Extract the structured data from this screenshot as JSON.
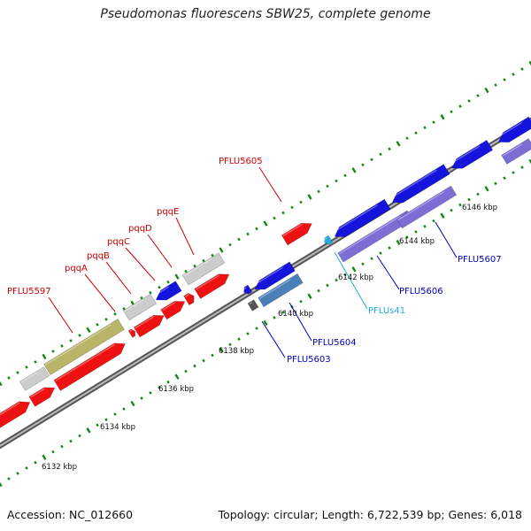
{
  "title": "Pseudomonas fluorescens SBW25, complete genome",
  "footer": {
    "accession": "Accession: NC_012660",
    "summary": "Topology: circular; Length: 6,722,539 bp; Genes: 6,018"
  },
  "colors": {
    "forward_gene": "#ee1111",
    "reverse_gene": "#1414dd",
    "pseudo": "#cccccc",
    "olive": "#b8b468",
    "purple": "#7b6fd6",
    "steel": "#4a7fb8",
    "label_red": "#cc0000",
    "label_blue": "#0000bb",
    "label_cyan": "#22aadd",
    "tick": "#118811"
  },
  "ticks": [
    {
      "label": "6132 kbp"
    },
    {
      "label": "6134 kbp"
    },
    {
      "label": "6136 kbp"
    },
    {
      "label": "6138 kbp"
    },
    {
      "label": "6140 kbp"
    },
    {
      "label": "6142 kbp"
    },
    {
      "label": "6144 kbp"
    },
    {
      "label": "6146 kbp"
    }
  ],
  "gene_labels": [
    {
      "text": "PFLU5597"
    },
    {
      "text": "pqqA"
    },
    {
      "text": "pqqB"
    },
    {
      "text": "pqqC"
    },
    {
      "text": "pqqD"
    },
    {
      "text": "pqqE"
    },
    {
      "text": "PFLU5605"
    },
    {
      "text": "PFLU5603"
    },
    {
      "text": "PFLU5604"
    },
    {
      "text": "PFLUs41"
    },
    {
      "text": "PFLU5606"
    },
    {
      "text": "PFLU5607"
    }
  ]
}
